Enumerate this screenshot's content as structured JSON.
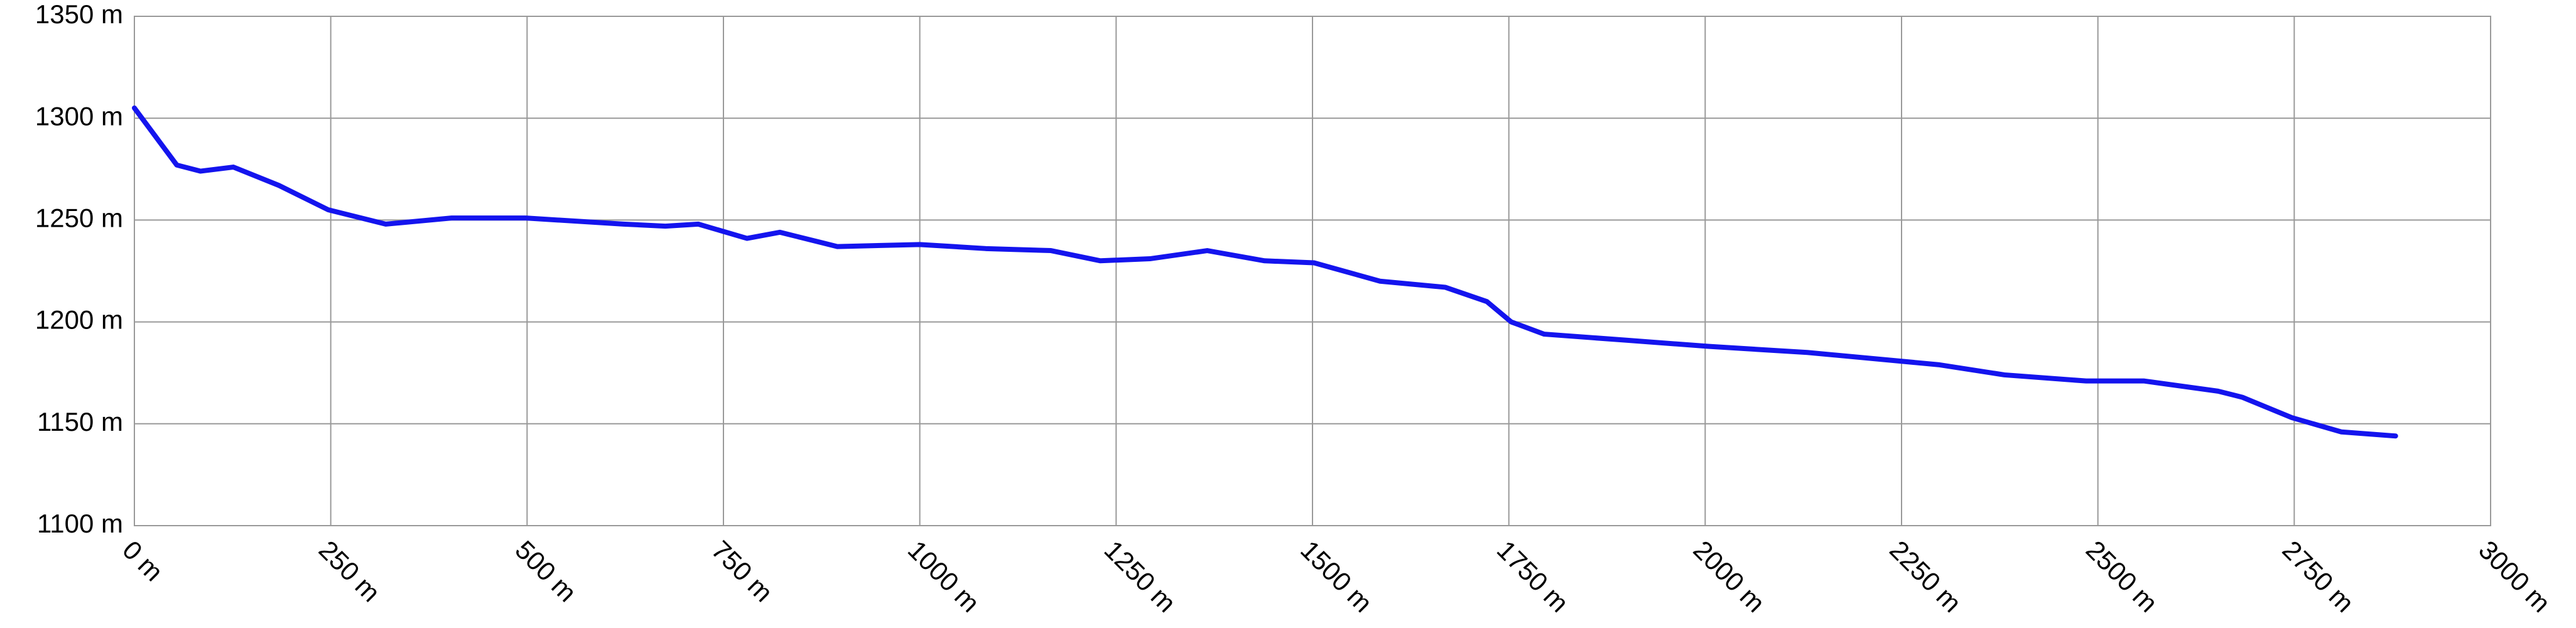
{
  "chart_data": {
    "type": "line",
    "x": [
      0,
      54,
      84,
      126,
      184,
      247,
      320,
      404,
      498,
      623,
      676,
      718,
      780,
      822,
      895,
      1000,
      1084,
      1167,
      1230,
      1293,
      1366,
      1439,
      1502,
      1586,
      1669,
      1722,
      1753,
      1795,
      1900,
      2004,
      2130,
      2297,
      2381,
      2485,
      2559,
      2653,
      2684,
      2747,
      2810,
      2879
    ],
    "values": [
      1305,
      1277,
      1274,
      1276,
      1267,
      1255,
      1248,
      1251,
      1251,
      1248,
      1247,
      1248,
      1241,
      1244,
      1237,
      1238,
      1236,
      1235,
      1230,
      1231,
      1235,
      1230,
      1229,
      1220,
      1217,
      1210,
      1200,
      1194,
      1191,
      1188,
      1185,
      1179,
      1174,
      1171,
      1171,
      1166,
      1163,
      1153,
      1146,
      1144
    ],
    "color": "#1414ee",
    "xlim": [
      0,
      3000
    ],
    "ylim": [
      1100,
      1350
    ],
    "xticks": [
      {
        "value": 0,
        "label": "0 m"
      },
      {
        "value": 250,
        "label": "250 m"
      },
      {
        "value": 500,
        "label": "500 m"
      },
      {
        "value": 750,
        "label": "750 m"
      },
      {
        "value": 1000,
        "label": "1000 m"
      },
      {
        "value": 1250,
        "label": "1250 m"
      },
      {
        "value": 1500,
        "label": "1500 m"
      },
      {
        "value": 1750,
        "label": "1750 m"
      },
      {
        "value": 2000,
        "label": "2000 m"
      },
      {
        "value": 2250,
        "label": "2250 m"
      },
      {
        "value": 2500,
        "label": "2500 m"
      },
      {
        "value": 2750,
        "label": "2750 m"
      },
      {
        "value": 3000,
        "label": "3000 m"
      }
    ],
    "yticks": [
      {
        "value": 1100,
        "label": "1100 m"
      },
      {
        "value": 1150,
        "label": "1150 m"
      },
      {
        "value": 1200,
        "label": "1200 m"
      },
      {
        "value": 1250,
        "label": "1250 m"
      },
      {
        "value": 1300,
        "label": "1300 m"
      },
      {
        "value": 1350,
        "label": "1350 m"
      }
    ],
    "grid": true
  }
}
